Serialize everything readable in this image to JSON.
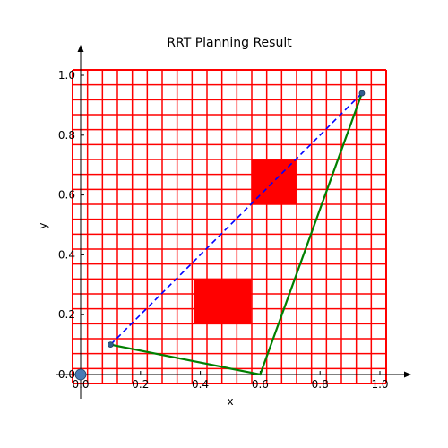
{
  "chart_data": {
    "type": "line",
    "title": "RRT Planning Result",
    "xlabel": "x",
    "ylabel": "y",
    "xlim": [
      -0.03,
      1.03
    ],
    "ylim": [
      -0.03,
      1.03
    ],
    "x_ticks": [
      "0.0",
      "0.2",
      "0.4",
      "0.6",
      "0.8",
      "1.0"
    ],
    "y_ticks": [
      "0.0",
      "0.2",
      "0.4",
      "0.6",
      "0.8",
      "1.0"
    ],
    "x_tick_values": [
      0,
      0.2,
      0.4,
      0.6,
      0.8,
      1.0
    ],
    "y_tick_values": [
      0,
      0.2,
      0.4,
      0.6,
      0.8,
      1.0
    ],
    "grid": true,
    "grid_color": "#ff0000",
    "obstacles": [
      {
        "x0": 0.38,
        "x1": 0.57,
        "y0": 0.17,
        "y1": 0.32,
        "color": "#ff0000"
      },
      {
        "x0": 0.57,
        "x1": 0.72,
        "y0": 0.57,
        "y1": 0.72,
        "color": "#ff0000"
      }
    ],
    "series": [
      {
        "style": "dashed",
        "color": "#0000ff",
        "points": [
          [
            0.1,
            0.1
          ],
          [
            0.94,
            0.94
          ]
        ]
      },
      {
        "style": "solid",
        "color": "#008000",
        "points": [
          [
            0.1,
            0.1
          ],
          [
            0.6,
            0.0
          ],
          [
            0.94,
            0.94
          ]
        ]
      }
    ],
    "markers": [
      {
        "x": 0.0,
        "y": 0.0,
        "size": "large",
        "color": "#4a7bb5"
      },
      {
        "x": 0.1,
        "y": 0.1,
        "size": "small",
        "color": "#2f5f8f"
      },
      {
        "x": 0.94,
        "y": 0.94,
        "size": "small",
        "color": "#2f5f8f"
      }
    ]
  }
}
